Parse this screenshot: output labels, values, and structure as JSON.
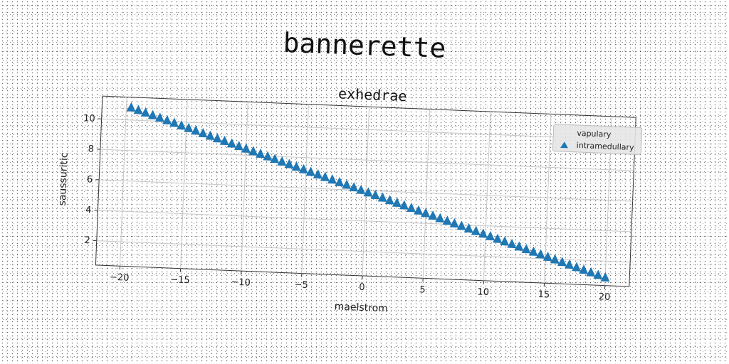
{
  "page": {
    "title": "bannerette"
  },
  "chart_data": {
    "type": "scatter",
    "title": "exhedrae",
    "xlabel": "maelstrom",
    "ylabel": "saussuritic",
    "xlim": [
      -22,
      22
    ],
    "ylim": [
      0.4,
      11.5
    ],
    "xticks": [
      -20,
      -15,
      -10,
      -5,
      0,
      5,
      10,
      15,
      20
    ],
    "yticks": [
      2,
      4,
      6,
      8,
      10
    ],
    "grid": true,
    "legend": {
      "position": "top-right",
      "entries": [
        "vapulary",
        "intramedullary"
      ]
    },
    "series": [
      {
        "name": "vapulary",
        "marker": "none",
        "color": "#1f77b4",
        "x": [],
        "y": []
      },
      {
        "name": "intramedullary",
        "marker": "triangle-up",
        "color": "#1f77b4",
        "x": [
          -19.6,
          -19.0,
          -18.4,
          -17.8,
          -17.2,
          -16.6,
          -16.0,
          -15.4,
          -14.8,
          -14.2,
          -13.6,
          -13.0,
          -12.4,
          -11.8,
          -11.2,
          -10.6,
          -10.0,
          -9.4,
          -8.8,
          -8.2,
          -7.6,
          -7.0,
          -6.4,
          -5.8,
          -5.2,
          -4.6,
          -4.0,
          -3.4,
          -2.8,
          -2.2,
          -1.6,
          -1.0,
          -0.4,
          0.2,
          0.8,
          1.4,
          2.0,
          2.6,
          3.2,
          3.8,
          4.4,
          5.0,
          5.6,
          6.2,
          6.8,
          7.4,
          8.0,
          8.6,
          9.2,
          9.8,
          10.4,
          11.0,
          11.6,
          12.2,
          12.8,
          13.4,
          14.0,
          14.6,
          15.2,
          15.8,
          16.4,
          17.0,
          17.6,
          18.2,
          18.8,
          19.4,
          20.0
        ],
        "y": [
          10.8,
          10.65,
          10.5,
          10.35,
          10.2,
          10.05,
          9.9,
          9.75,
          9.6,
          9.45,
          9.3,
          9.15,
          9.0,
          8.85,
          8.7,
          8.55,
          8.4,
          8.25,
          8.1,
          7.95,
          7.8,
          7.65,
          7.5,
          7.35,
          7.2,
          7.05,
          6.9,
          6.75,
          6.6,
          6.45,
          6.3,
          6.15,
          6.0,
          5.85,
          5.7,
          5.55,
          5.4,
          5.25,
          5.1,
          4.95,
          4.8,
          4.65,
          4.5,
          4.35,
          4.2,
          4.05,
          3.9,
          3.75,
          3.6,
          3.45,
          3.3,
          3.15,
          3.0,
          2.85,
          2.7,
          2.55,
          2.4,
          2.25,
          2.1,
          1.95,
          1.8,
          1.65,
          1.5,
          1.35,
          1.2,
          1.05,
          0.9
        ]
      }
    ]
  }
}
